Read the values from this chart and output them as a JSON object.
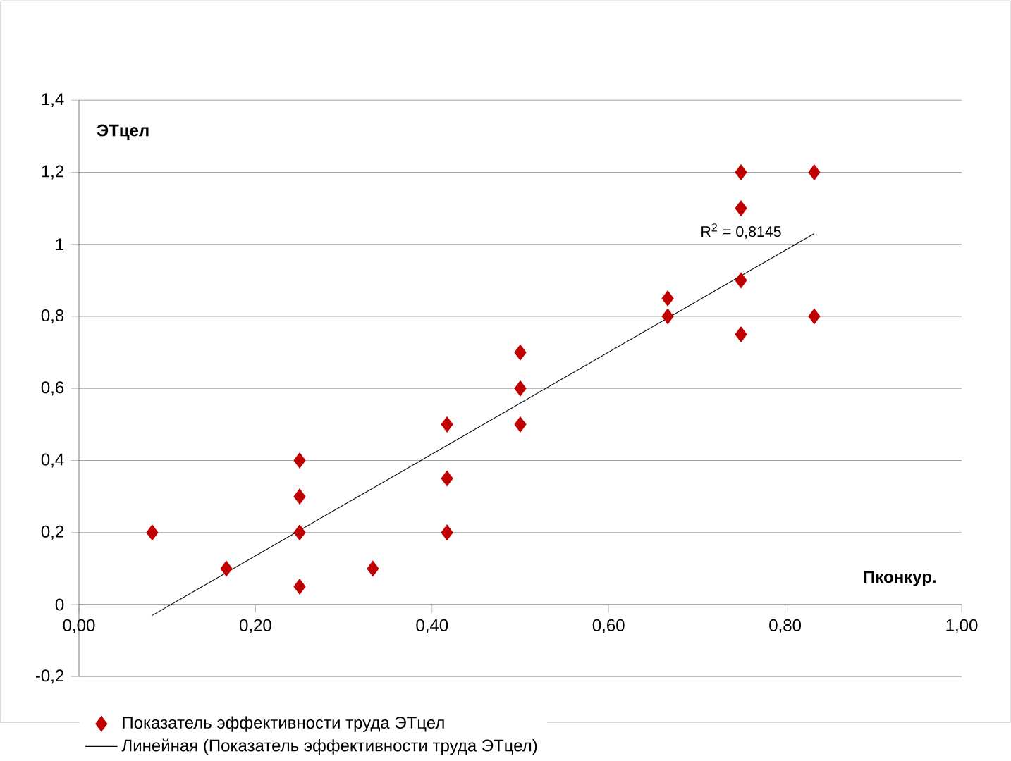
{
  "chart_data": {
    "type": "scatter",
    "xlabel": "Пконкур.",
    "ylabel": "ЭТцел",
    "series": [
      {
        "name": "Показатель эффективности труда ЭТцел",
        "color": "#c00000",
        "marker": "diamond",
        "x": [
          0.083,
          0.167,
          0.25,
          0.25,
          0.25,
          0.25,
          0.333,
          0.417,
          0.417,
          0.417,
          0.5,
          0.5,
          0.5,
          0.667,
          0.667,
          0.75,
          0.75,
          0.75,
          0.75,
          0.833,
          0.833
        ],
        "values": [
          0.2,
          0.1,
          0.4,
          0.3,
          0.2,
          0.05,
          0.1,
          0.5,
          0.35,
          0.2,
          0.7,
          0.6,
          0.5,
          0.85,
          0.8,
          1.2,
          1.1,
          0.9,
          0.75,
          1.2,
          0.8
        ]
      },
      {
        "name": "Линейная (Показатель эффективности труда ЭТцел)",
        "type": "line",
        "color": "#000000",
        "marker": "none",
        "line_style": "solid",
        "x": [
          0.083,
          0.833
        ],
        "values": [
          -0.03,
          1.03
        ]
      }
    ],
    "annotations": [
      "R$^{2}$ = 0,8145"
    ],
    "xlim": [
      0,
      1
    ],
    "ylim": [
      -0.2,
      1.4
    ],
    "xticks": [
      {
        "value": 0,
        "label": "0,00"
      },
      {
        "value": 0.2,
        "label": "0,20"
      },
      {
        "value": 0.4,
        "label": "0,40"
      },
      {
        "value": 0.6,
        "label": "0,60"
      },
      {
        "value": 0.8,
        "label": "0,80"
      },
      {
        "value": 1,
        "label": "1,00"
      }
    ],
    "yticks": [
      {
        "value": -0.2,
        "label": "-0,2"
      },
      0,
      {
        "value": 0.2,
        "label": "0,2"
      },
      {
        "value": 0.4,
        "label": "0,4"
      },
      {
        "value": 0.6,
        "label": "0,6"
      },
      {
        "value": 0.8,
        "label": "0,8"
      },
      1,
      {
        "value": 1.2,
        "label": "1,2"
      },
      {
        "value": 1.4,
        "label": "1,4"
      }
    ],
    "grid": "y",
    "legend": "bottom"
  }
}
